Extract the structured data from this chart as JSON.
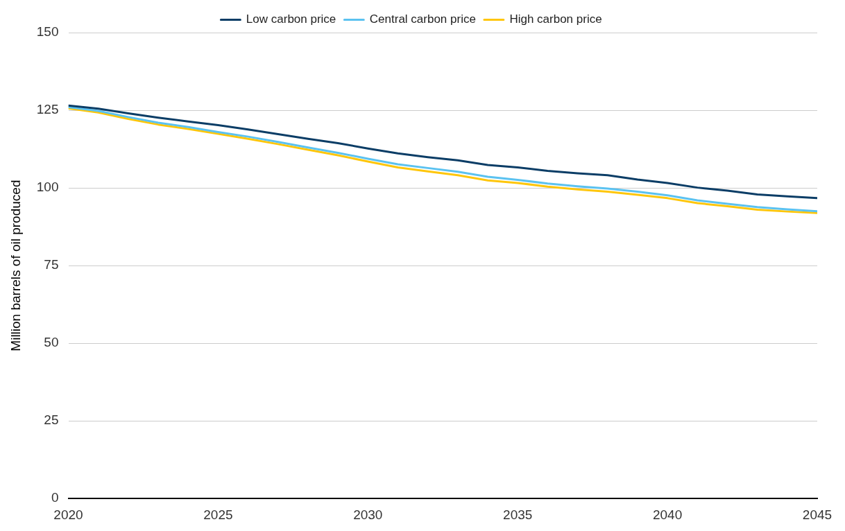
{
  "chart_data": {
    "type": "line",
    "ylabel": "Million barrels of oil produced",
    "x": [
      2020,
      2021,
      2022,
      2023,
      2024,
      2025,
      2026,
      2027,
      2028,
      2029,
      2030,
      2031,
      2032,
      2033,
      2034,
      2035,
      2036,
      2037,
      2038,
      2039,
      2040,
      2041,
      2042,
      2043,
      2044,
      2045
    ],
    "series": [
      {
        "name": "Low carbon price",
        "color": "#0b3d66",
        "values": [
          126.5,
          125.5,
          124,
          122.6,
          121.4,
          120.2,
          118.8,
          117.3,
          115.8,
          114.4,
          112.7,
          111.1,
          109.9,
          108.9,
          107.4,
          106.6,
          105.5,
          104.7,
          104.1,
          102.7,
          101.6,
          100.1,
          99.1,
          97.9,
          97.3,
          96.7
        ]
      },
      {
        "name": "Central carbon price",
        "color": "#5bc2f0",
        "values": [
          126,
          124.8,
          122.8,
          121,
          119.6,
          118,
          116.5,
          114.8,
          113,
          111.3,
          109.4,
          107.6,
          106.4,
          105.2,
          103.6,
          102.6,
          101.4,
          100.5,
          99.8,
          98.8,
          97.6,
          96,
          94.9,
          93.8,
          93.1,
          92.5
        ]
      },
      {
        "name": "High carbon price",
        "color": "#ffc60b",
        "values": [
          125.6,
          124.3,
          122.2,
          120.4,
          119,
          117.4,
          115.8,
          114.1,
          112.3,
          110.5,
          108.5,
          106.6,
          105.3,
          104.1,
          102.4,
          101.6,
          100.4,
          99.5,
          98.8,
          97.8,
          96.7,
          95.1,
          94.1,
          93,
          92.4,
          91.9
        ]
      }
    ],
    "xlim": [
      2020,
      2045
    ],
    "xticks": [
      2020,
      2025,
      2030,
      2035,
      2040,
      2045
    ],
    "ylim": [
      0,
      150
    ],
    "yticks": [
      0,
      25,
      50,
      75,
      100,
      125,
      150
    ],
    "grid": "y",
    "legend": "top",
    "marker": "none",
    "line_style": "solid"
  }
}
